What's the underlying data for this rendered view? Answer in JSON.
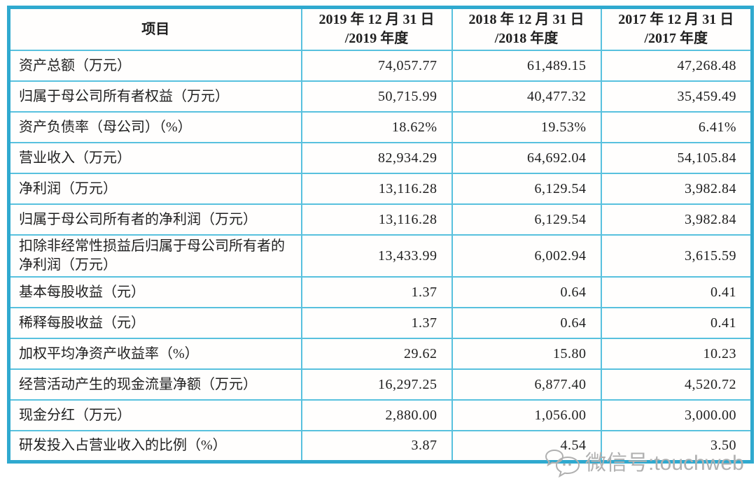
{
  "table": {
    "header": {
      "item_label": "项目",
      "cols": [
        {
          "line1": "2019 年 12 月 31 日",
          "line2": "/2019 年度"
        },
        {
          "line1": "2018 年 12 月 31 日",
          "line2": "/2018 年度"
        },
        {
          "line1": "2017 年 12 月 31 日",
          "line2": "/2017 年度"
        }
      ]
    },
    "col_keys": [
      "v2019",
      "v2018",
      "v2017"
    ],
    "rows": [
      {
        "label": "资产总额（万元）",
        "v2019": "74,057.77",
        "v2018": "61,489.15",
        "v2017": "47,268.48"
      },
      {
        "label": "归属于母公司所有者权益（万元）",
        "v2019": "50,715.99",
        "v2018": "40,477.32",
        "v2017": "35,459.49"
      },
      {
        "label": "资产负债率（母公司）（%）",
        "v2019": "18.62%",
        "v2018": "19.53%",
        "v2017": "6.41%"
      },
      {
        "label": "营业收入（万元）",
        "v2019": "82,934.29",
        "v2018": "64,692.04",
        "v2017": "54,105.84"
      },
      {
        "label": "净利润（万元）",
        "v2019": "13,116.28",
        "v2018": "6,129.54",
        "v2017": "3,982.84"
      },
      {
        "label": "归属于母公司所有者的净利润（万元）",
        "v2019": "13,116.28",
        "v2018": "6,129.54",
        "v2017": "3,982.84"
      },
      {
        "label": "扣除非经常性损益后归属于母公司所有者的净利润（万元）",
        "v2019": "13,433.99",
        "v2018": "6,002.94",
        "v2017": "3,615.59"
      },
      {
        "label": "基本每股收益（元）",
        "v2019": "1.37",
        "v2018": "0.64",
        "v2017": "0.41"
      },
      {
        "label": "稀释每股收益（元）",
        "v2019": "1.37",
        "v2018": "0.64",
        "v2017": "0.41"
      },
      {
        "label": "加权平均净资产收益率（%）",
        "v2019": "29.62",
        "v2018": "15.80",
        "v2017": "10.23"
      },
      {
        "label": "经营活动产生的现金流量净额（万元）",
        "v2019": "16,297.25",
        "v2018": "6,877.40",
        "v2017": "4,520.72"
      },
      {
        "label": "现金分红（万元）",
        "v2019": "2,880.00",
        "v2018": "1,056.00",
        "v2017": "3,000.00"
      },
      {
        "label": "研发投入占营业收入的比例（%）",
        "v2019": "3.87",
        "v2018": "4.54",
        "v2017": "3.50"
      }
    ]
  },
  "watermark": {
    "icon": "wechat-icon",
    "text": "微信号:touchweb"
  },
  "colors": {
    "border_outer": "#2fa9cf",
    "border_inner": "#58c1de",
    "text": "#1f1f1f",
    "watermark": "#b0b0b0",
    "background": "#ffffff"
  }
}
